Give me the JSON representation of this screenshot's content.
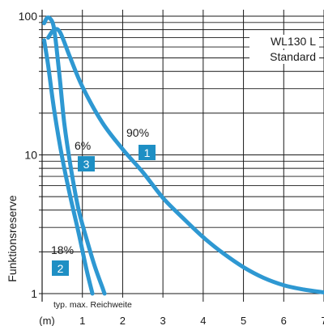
{
  "chart_data": {
    "type": "line",
    "title": "",
    "subtitle": "",
    "xlabel": "",
    "x_unit_label": "(m)",
    "ylabel": "Funktionsreserve",
    "yscale": "log",
    "xlim": [
      0,
      7
    ],
    "ylim": [
      1,
      100
    ],
    "grid": true,
    "x_ticks": [
      "1",
      "2",
      "3",
      "4",
      "5",
      "6",
      "7"
    ],
    "x_tick_values": [
      1,
      2,
      3,
      4,
      5,
      6,
      7
    ],
    "y_ticks": [
      "1",
      "10",
      "100"
    ],
    "y_tick_values": [
      1,
      10,
      100
    ],
    "legend_lines": [
      "WL130 L",
      "Standard"
    ],
    "legend_placement": "top-right",
    "footer_note": "typ. max. Reichweite",
    "line_color": "#2e98d2",
    "badge_color": "#1e8fc4",
    "series": [
      {
        "badge": "1",
        "percent_label": "90%",
        "points": [
          [
            0.15,
            70
          ],
          [
            0.3,
            80
          ],
          [
            0.45,
            76
          ],
          [
            0.7,
            50
          ],
          [
            1.0,
            31
          ],
          [
            1.5,
            17
          ],
          [
            2.0,
            11
          ],
          [
            2.5,
            7.5
          ],
          [
            3.0,
            4.9
          ],
          [
            3.5,
            3.5
          ],
          [
            4.0,
            2.55
          ],
          [
            4.5,
            1.95
          ],
          [
            5.0,
            1.55
          ],
          [
            5.5,
            1.3
          ],
          [
            6.0,
            1.15
          ],
          [
            6.5,
            1.07
          ],
          [
            7.0,
            1.02
          ]
        ]
      },
      {
        "badge": "3",
        "percent_label": "6%",
        "points": [
          [
            0.05,
            67
          ],
          [
            0.15,
            44
          ],
          [
            0.3,
            21
          ],
          [
            0.5,
            9.5
          ],
          [
            0.7,
            5
          ],
          [
            0.9,
            2.8
          ],
          [
            1.1,
            1.5
          ],
          [
            1.25,
            1.0
          ]
        ]
      },
      {
        "badge": "2",
        "percent_label": "18%",
        "points": [
          [
            0.05,
            89
          ],
          [
            0.12,
            97
          ],
          [
            0.2,
            96
          ],
          [
            0.28,
            86
          ],
          [
            0.35,
            62
          ],
          [
            0.45,
            33
          ],
          [
            0.55,
            17
          ],
          [
            0.7,
            8.5
          ],
          [
            0.9,
            4.1
          ],
          [
            1.1,
            2.5
          ],
          [
            1.3,
            1.6
          ],
          [
            1.5,
            1.1
          ],
          [
            1.55,
            1.0
          ]
        ]
      }
    ]
  }
}
